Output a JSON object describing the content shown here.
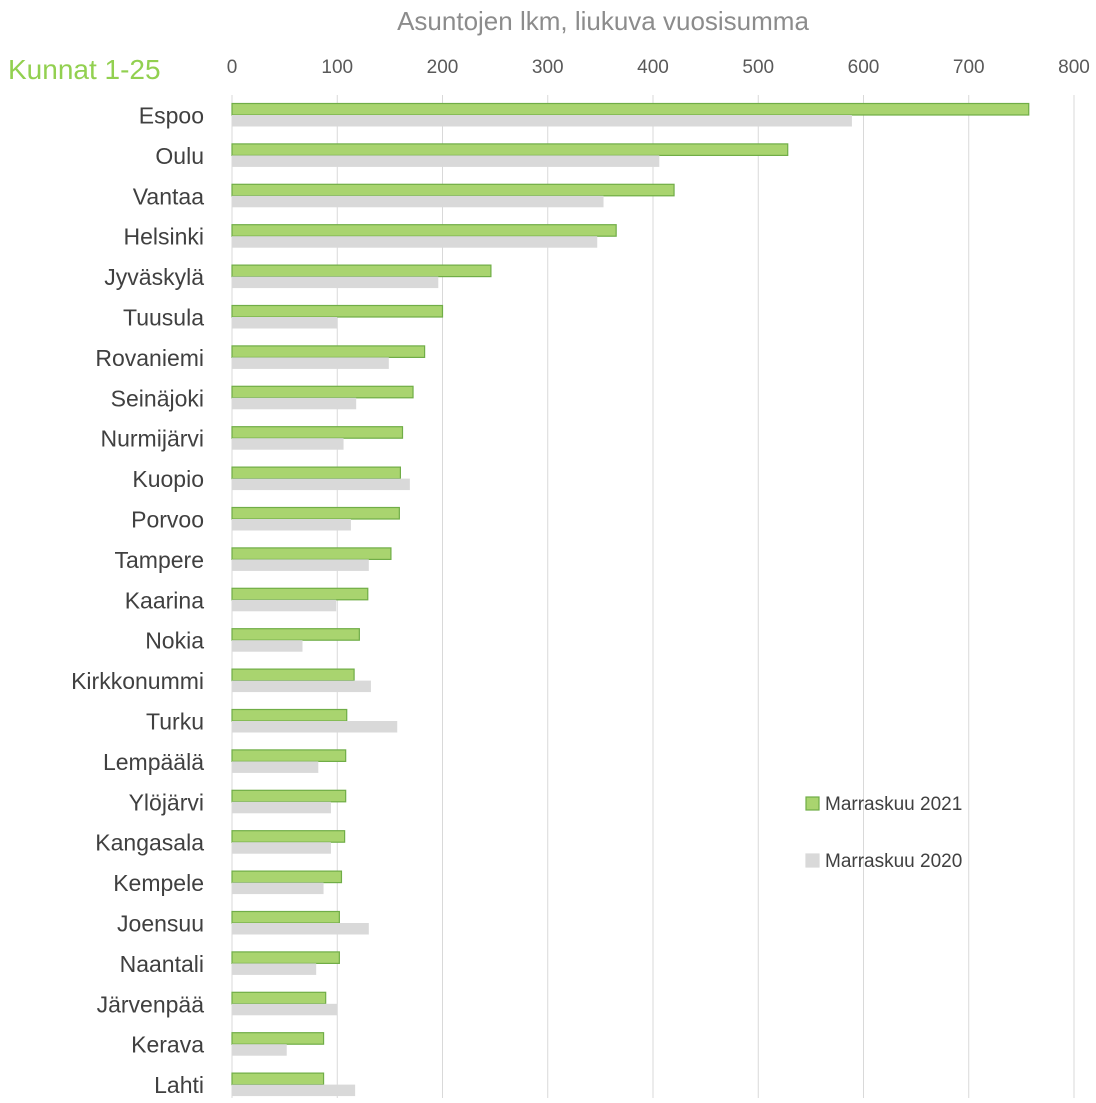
{
  "chart_data": {
    "type": "bar",
    "orientation": "horizontal",
    "title": "Asuntojen lkm, liukuva vuosisumma",
    "corner_label": "Kunnat 1-25",
    "xlim": [
      0,
      800
    ],
    "xticks": [
      0,
      100,
      200,
      300,
      400,
      500,
      600,
      700,
      800
    ],
    "grid": true,
    "legend_position": "right-lower",
    "categories": [
      "Espoo",
      "Oulu",
      "Vantaa",
      "Helsinki",
      "Jyväskylä",
      "Tuusula",
      "Rovaniemi",
      "Seinäjoki",
      "Nurmijärvi",
      "Kuopio",
      "Porvoo",
      "Tampere",
      "Kaarina",
      "Nokia",
      "Kirkkonummi",
      "Turku",
      "Lempäälä",
      "Ylöjärvi",
      "Kangasala",
      "Kempele",
      "Joensuu",
      "Naantali",
      "Järvenpää",
      "Kerava",
      "Lahti"
    ],
    "series": [
      {
        "name": "Marraskuu 2021",
        "color": "#a9d46f",
        "border": "#70ad47",
        "values": [
          757,
          528,
          420,
          365,
          246,
          200,
          183,
          172,
          162,
          160,
          159,
          151,
          129,
          121,
          116,
          109,
          108,
          108,
          107,
          104,
          102,
          102,
          89,
          87,
          87
        ]
      },
      {
        "name": "Marraskuu 2020",
        "color": "#d9d9d9",
        "border": "#d9d9d9",
        "values": [
          589,
          406,
          353,
          347,
          196,
          100,
          149,
          118,
          106,
          169,
          113,
          130,
          99,
          67,
          132,
          157,
          82,
          94,
          94,
          87,
          130,
          80,
          100,
          52,
          117
        ]
      }
    ]
  },
  "colors": {
    "corner_label": "#92d050",
    "grid": "#d9d9d9",
    "axis_title": "#8c8c8c"
  }
}
